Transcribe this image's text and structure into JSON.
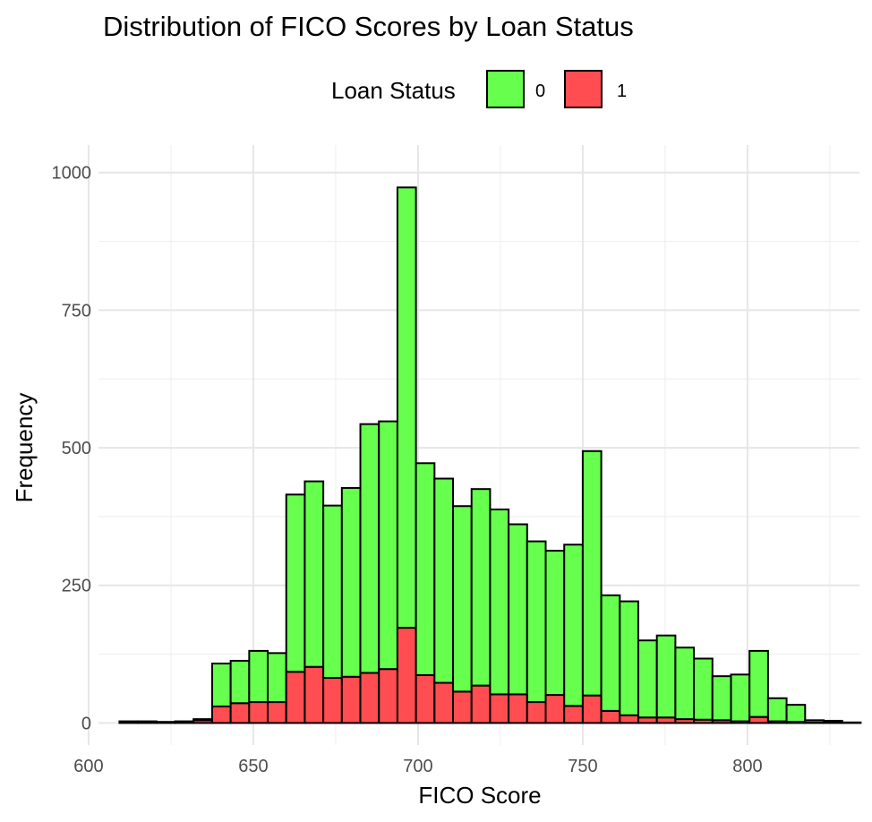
{
  "chart_data": {
    "type": "bar",
    "stacked": true,
    "title": "Distribution of FICO Scores by Loan Status",
    "xlabel": "FICO Score",
    "ylabel": "Frequency",
    "xlim": [
      603,
      834
    ],
    "ylim": [
      -40,
      1050
    ],
    "x_ticks": [
      600,
      650,
      700,
      750,
      800
    ],
    "y_ticks": [
      0,
      250,
      500,
      750,
      1000
    ],
    "bin_width": 5.625,
    "bin_start": 609.375,
    "legend": {
      "title": "Loan Status",
      "position": "top",
      "entries": [
        {
          "label": "0",
          "color": "#66ff4d"
        },
        {
          "label": "1",
          "color": "#ff4d52"
        }
      ]
    },
    "series": [
      {
        "name": "0",
        "color": "#66ff4d",
        "values": [
          2,
          2,
          1,
          2,
          2,
          78,
          77,
          93,
          89,
          322,
          337,
          313,
          343,
          452,
          450,
          800,
          385,
          371,
          337,
          357,
          336,
          309,
          292,
          262,
          293,
          444,
          210,
          207,
          140,
          149,
          130,
          111,
          80,
          85,
          120,
          42,
          31,
          4,
          3,
          1
        ]
      },
      {
        "name": "1",
        "color": "#ff4d52",
        "values": [
          1,
          1,
          1,
          1,
          5,
          30,
          36,
          38,
          38,
          93,
          102,
          82,
          84,
          91,
          98,
          173,
          87,
          73,
          57,
          68,
          52,
          52,
          38,
          51,
          31,
          50,
          22,
          14,
          10,
          10,
          7,
          6,
          5,
          3,
          11,
          3,
          2,
          1,
          1,
          0
        ]
      }
    ]
  }
}
